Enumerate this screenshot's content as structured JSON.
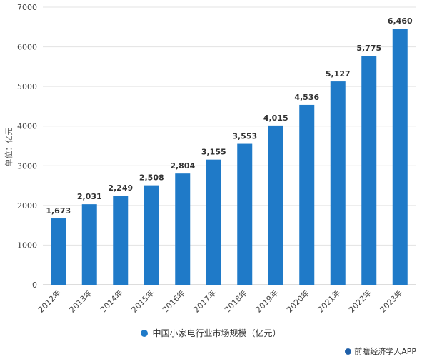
{
  "chart_data": {
    "type": "bar",
    "categories": [
      "2012年",
      "2013年",
      "2014年",
      "2015年",
      "2016年",
      "2017年",
      "2018年",
      "2019年",
      "2020年",
      "2021年",
      "2022年",
      "2023年"
    ],
    "values": [
      1673,
      2031,
      2249,
      2508,
      2804,
      3155,
      3553,
      4015,
      4536,
      5127,
      5775,
      6460
    ],
    "value_labels": [
      "1,673",
      "2,031",
      "2,249",
      "2,508",
      "2,804",
      "3,155",
      "3,553",
      "4,015",
      "4,536",
      "5,127",
      "5,775",
      "6,460"
    ],
    "ylabel": "单位：亿元",
    "ylim": [
      0,
      7000
    ],
    "yticks": [
      0,
      1000,
      2000,
      3000,
      4000,
      5000,
      6000,
      7000
    ],
    "grid": true,
    "legend_position": "bottom",
    "series": [
      {
        "name": "中国小家电行业市场规模（亿元）",
        "color": "#1f7ac8"
      }
    ]
  },
  "colors": {
    "bar": "#1f7ac8",
    "grid": "#e3e3e3"
  },
  "source_label": "前瞻经济学人APP"
}
